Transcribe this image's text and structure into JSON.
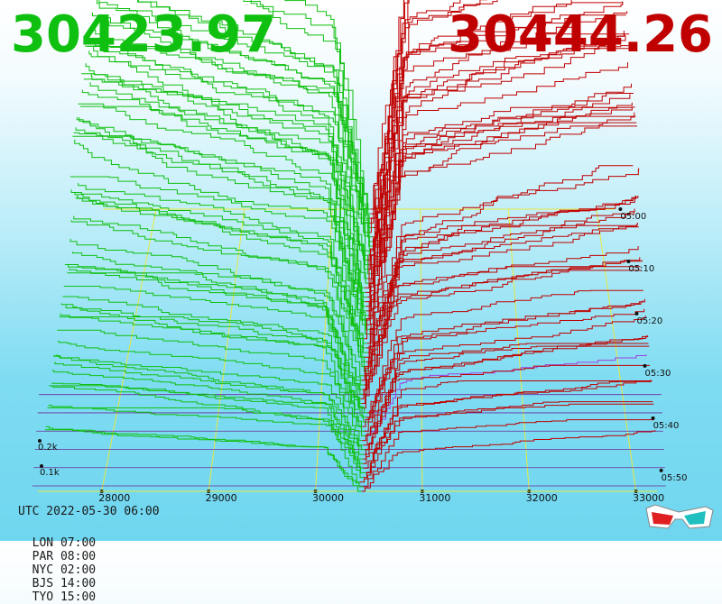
{
  "prices": {
    "bid": "30423.97",
    "ask": "30444.26"
  },
  "colors": {
    "bid": "#10c010",
    "ask": "#c00000",
    "grid": "#e8e840",
    "depth_axis": "#6a2a9a"
  },
  "footer": {
    "utc": "UTC 2022-05-30 06:00",
    "zones": [
      "LON 07:00",
      "PAR 08:00",
      "NYC 02:00",
      "BJS 14:00",
      "TYO 15:00"
    ]
  },
  "chart_data": {
    "type": "area",
    "description_of_axes": "3D order-book depth over time",
    "x_tick_labels": [
      "28000",
      "29000",
      "30000",
      "31000",
      "32000",
      "33000"
    ],
    "x_ticks": [
      28000,
      29000,
      30000,
      31000,
      32000,
      33000
    ],
    "x_range": [
      27200,
      33400
    ],
    "depth_tick_labels": [
      "0.1k",
      "0.2k"
    ],
    "depth_ticks": [
      100,
      200
    ],
    "time_tick_labels": [
      "05:00",
      "05:10",
      "05:20",
      "05:30",
      "05:40",
      "05:50"
    ],
    "spread_center": 30434,
    "series": [
      {
        "name": "bid",
        "side": "buy"
      },
      {
        "name": "ask",
        "side": "sell"
      }
    ]
  }
}
